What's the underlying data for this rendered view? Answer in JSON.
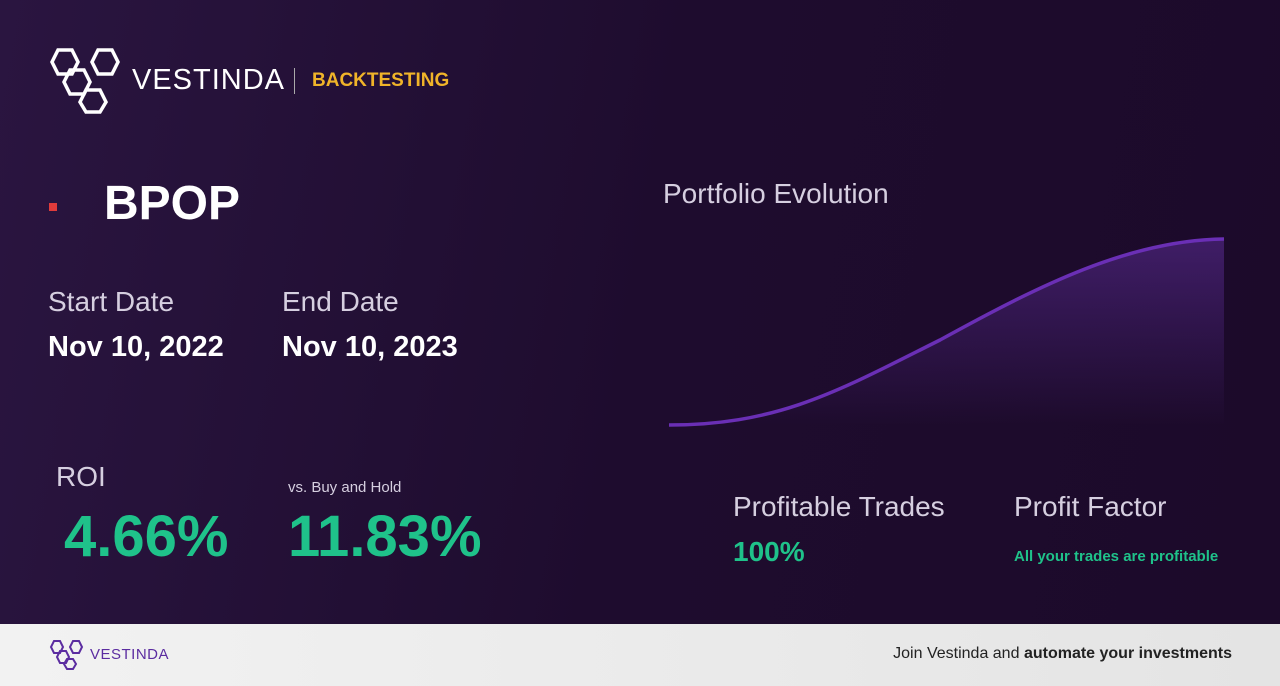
{
  "header": {
    "brand": "VESTINDA",
    "section": "BACKTESTING"
  },
  "ticker": "BPOP",
  "start_date": {
    "label": "Start Date",
    "value": "Nov 10, 2022"
  },
  "end_date": {
    "label": "End Date",
    "value": "Nov 10, 2023"
  },
  "roi": {
    "label": "ROI",
    "value": "4.66%"
  },
  "vs_buy_hold": {
    "label": "vs. Buy and Hold",
    "value": "11.83%"
  },
  "portfolio": {
    "title": "Portfolio Evolution"
  },
  "profitable_trades": {
    "label": "Profitable Trades",
    "value": "100%"
  },
  "profit_factor": {
    "label": "Profit Factor",
    "value": "All your trades are profitable"
  },
  "footer": {
    "brand": "VESTINDA",
    "text": "Join Vestinda and",
    "emphasis": "automate your investments"
  }
}
